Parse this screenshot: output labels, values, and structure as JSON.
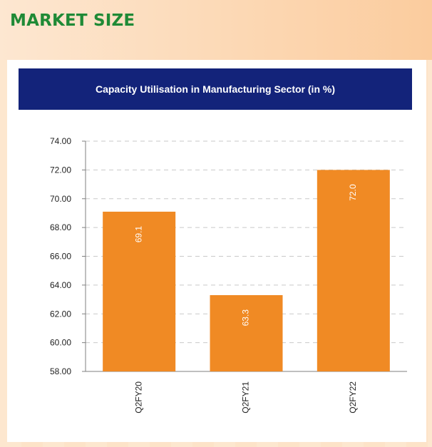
{
  "page": {
    "section_title": "MARKET SIZE"
  },
  "chart_data": {
    "type": "bar",
    "title": "Capacity Utilisation in Manufacturing Sector (in %)",
    "categories": [
      "Q2FY20",
      "Q2FY21",
      "Q2FY22"
    ],
    "values": [
      69.1,
      63.3,
      72.0
    ],
    "value_labels": [
      "69.1",
      "63.3",
      "72.0"
    ],
    "ylim": [
      58,
      74
    ],
    "yticks": [
      "58.00",
      "60.00",
      "62.00",
      "64.00",
      "66.00",
      "68.00",
      "70.00",
      "72.00",
      "74.00"
    ],
    "grid": true,
    "legend": "none",
    "bar_color": "#f08a24",
    "header_color": "#13237a",
    "title_color": "#1f8a36"
  }
}
